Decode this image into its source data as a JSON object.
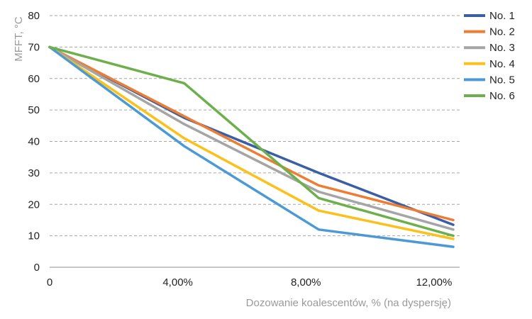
{
  "chart_data": {
    "type": "line",
    "title": "",
    "xlabel": "Dozowanie koalescentów, % (na dyspersję)",
    "ylabel": "MFFT, °C",
    "x_ticks": [
      {
        "value": 0,
        "label": "0"
      },
      {
        "value": 4,
        "label": "4,00%"
      },
      {
        "value": 8,
        "label": "8,00%"
      },
      {
        "value": 12,
        "label": "12,00%"
      }
    ],
    "y_ticks": [
      0,
      10,
      20,
      30,
      40,
      50,
      60,
      70,
      80
    ],
    "xlim": [
      0,
      12.8
    ],
    "ylim": [
      0,
      80
    ],
    "grid": "horizontal-dashed",
    "legend_position": "right",
    "series": [
      {
        "name": "No. 1",
        "color": "#3b5ea5",
        "x": [
          0,
          4.2,
          8.4,
          12.6
        ],
        "y": [
          70,
          47.5,
          30,
          13.5
        ]
      },
      {
        "name": "No. 2",
        "color": "#ee7d34",
        "x": [
          0,
          4.2,
          8.4,
          12.6
        ],
        "y": [
          70,
          48,
          26,
          15
        ]
      },
      {
        "name": "No. 3",
        "color": "#a5a5a5",
        "x": [
          0,
          4.2,
          8.4,
          12.6
        ],
        "y": [
          70,
          45.5,
          24,
          12
        ]
      },
      {
        "name": "No. 4",
        "color": "#fcc01a",
        "x": [
          0,
          4.2,
          8.4,
          12.6
        ],
        "y": [
          70,
          41,
          18,
          9
        ]
      },
      {
        "name": "No. 5",
        "color": "#4c9ad5",
        "x": [
          0,
          4.2,
          8.4,
          12.6
        ],
        "y": [
          70,
          38.5,
          12,
          6.5
        ]
      },
      {
        "name": "No. 6",
        "color": "#6db04b",
        "x": [
          0,
          4.2,
          8.4,
          12.6
        ],
        "y": [
          70,
          58.5,
          22,
          10
        ]
      }
    ]
  }
}
